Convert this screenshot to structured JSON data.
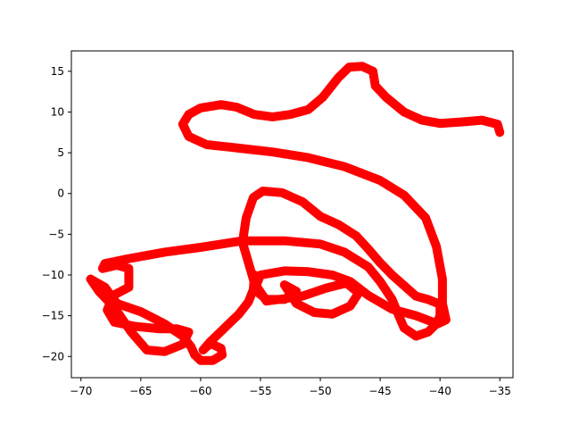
{
  "chart_data": {
    "type": "line",
    "title": "",
    "xlabel": "",
    "ylabel": "",
    "xlim": [
      -70.8,
      -33.9
    ],
    "ylim": [
      -22.6,
      17.5
    ],
    "x_ticks": [
      -70,
      -65,
      -60,
      -55,
      -50,
      -45,
      -40,
      -35
    ],
    "y_ticks": [
      15,
      10,
      5,
      0,
      -5,
      -10,
      -15,
      -20
    ],
    "x_tick_labels": [
      "−70",
      "−65",
      "−60",
      "−55",
      "−50",
      "−45",
      "−40",
      "−35"
    ],
    "y_tick_labels": [
      "15",
      "10",
      "5",
      "0",
      "−5",
      "−10",
      "−15",
      "−20"
    ],
    "grid": false,
    "series": [
      {
        "color": "#ff0000",
        "points": [
          [
            -35.0,
            7.5
          ],
          [
            -35.2,
            8.5
          ],
          [
            -36.5,
            9.0
          ],
          [
            -38.0,
            8.8
          ],
          [
            -40.0,
            8.6
          ],
          [
            -41.5,
            9.0
          ],
          [
            -43.0,
            10.0
          ],
          [
            -44.5,
            11.8
          ],
          [
            -45.4,
            13.2
          ],
          [
            -45.6,
            15.0
          ],
          [
            -46.5,
            15.6
          ],
          [
            -47.6,
            15.5
          ],
          [
            -48.5,
            14.2
          ],
          [
            -49.8,
            11.8
          ],
          [
            -51.0,
            10.3
          ],
          [
            -52.5,
            9.7
          ],
          [
            -54.0,
            9.4
          ],
          [
            -55.5,
            9.7
          ],
          [
            -57.0,
            10.6
          ],
          [
            -58.3,
            10.9
          ],
          [
            -60.0,
            10.5
          ],
          [
            -61.0,
            9.7
          ],
          [
            -61.5,
            8.5
          ],
          [
            -61.0,
            7.0
          ],
          [
            -59.5,
            6.0
          ],
          [
            -57.0,
            5.6
          ],
          [
            -54.0,
            5.1
          ],
          [
            -51.0,
            4.4
          ],
          [
            -48.0,
            3.3
          ],
          [
            -45.0,
            1.6
          ],
          [
            -43.0,
            -0.2
          ],
          [
            -41.2,
            -3.0
          ],
          [
            -40.3,
            -6.5
          ],
          [
            -39.8,
            -10.5
          ],
          [
            -39.8,
            -13.5
          ],
          [
            -39.5,
            -15.5
          ],
          [
            -40.2,
            -16.0
          ],
          [
            -42.0,
            -15.0
          ],
          [
            -44.0,
            -14.2
          ],
          [
            -46.0,
            -12.5
          ],
          [
            -47.5,
            -10.8
          ],
          [
            -49.0,
            -10.0
          ],
          [
            -51.0,
            -9.6
          ],
          [
            -53.0,
            -9.5
          ],
          [
            -55.0,
            -10.0
          ],
          [
            -55.5,
            -11.8
          ],
          [
            -54.5,
            -13.0
          ],
          [
            -53.0,
            -13.0
          ],
          [
            -52.0,
            -12.0
          ],
          [
            -53.0,
            -11.2
          ],
          [
            -52.0,
            -13.5
          ],
          [
            -50.5,
            -14.6
          ],
          [
            -49.0,
            -14.8
          ],
          [
            -47.5,
            -13.8
          ],
          [
            -46.8,
            -12.2
          ],
          [
            -47.8,
            -11.0
          ],
          [
            -49.5,
            -11.6
          ],
          [
            -51.5,
            -12.6
          ],
          [
            -53.5,
            -13.0
          ],
          [
            -54.5,
            -13.2
          ]
        ]
      },
      {
        "color": "#ff0000",
        "points": [
          [
            -54.5,
            -13.2
          ],
          [
            -55.5,
            -11.0
          ],
          [
            -56.0,
            -8.5
          ],
          [
            -56.5,
            -6.0
          ],
          [
            -56.2,
            -3.0
          ],
          [
            -55.6,
            -0.5
          ],
          [
            -54.8,
            0.3
          ],
          [
            -53.2,
            0.1
          ],
          [
            -51.5,
            -1.0
          ],
          [
            -50.0,
            -2.8
          ],
          [
            -48.5,
            -3.8
          ],
          [
            -47.0,
            -5.2
          ],
          [
            -46.0,
            -6.8
          ],
          [
            -45.0,
            -8.5
          ],
          [
            -44.0,
            -10.0
          ],
          [
            -43.0,
            -11.3
          ],
          [
            -42.0,
            -12.6
          ],
          [
            -41.0,
            -13.0
          ],
          [
            -40.0,
            -13.6
          ],
          [
            -40.0,
            -15.0
          ],
          [
            -40.3,
            -16.0
          ],
          [
            -41.0,
            -17.0
          ],
          [
            -42.0,
            -17.5
          ],
          [
            -43.0,
            -16.5
          ],
          [
            -43.5,
            -14.8
          ],
          [
            -44.0,
            -13.0
          ],
          [
            -45.0,
            -10.8
          ],
          [
            -46.0,
            -9.0
          ],
          [
            -48.0,
            -7.2
          ],
          [
            -50.0,
            -6.2
          ],
          [
            -53.0,
            -5.8
          ],
          [
            -56.5,
            -5.8
          ],
          [
            -60.0,
            -6.6
          ],
          [
            -63.0,
            -7.2
          ],
          [
            -66.0,
            -8.0
          ],
          [
            -68.0,
            -8.6
          ],
          [
            -68.2,
            -9.2
          ],
          [
            -67.0,
            -8.8
          ],
          [
            -66.0,
            -9.2
          ],
          [
            -66.0,
            -11.5
          ],
          [
            -67.3,
            -12.5
          ],
          [
            -67.8,
            -14.3
          ],
          [
            -67.2,
            -15.8
          ],
          [
            -65.5,
            -16.3
          ],
          [
            -63.5,
            -16.6
          ],
          [
            -62.0,
            -16.6
          ],
          [
            -61.0,
            -17.0
          ],
          [
            -61.5,
            -18.5
          ],
          [
            -63.0,
            -19.4
          ],
          [
            -64.5,
            -19.2
          ],
          [
            -65.8,
            -17.0
          ],
          [
            -67.2,
            -14.0
          ],
          [
            -68.5,
            -12.0
          ],
          [
            -69.2,
            -10.5
          ],
          [
            -68.0,
            -11.5
          ],
          [
            -67.0,
            -13.5
          ],
          [
            -65.0,
            -14.5
          ],
          [
            -63.0,
            -16.0
          ],
          [
            -61.5,
            -17.5
          ],
          [
            -60.8,
            -18.8
          ]
        ]
      },
      {
        "color": "#ff0000",
        "points": [
          [
            -60.8,
            -18.8
          ],
          [
            -60.5,
            -19.8
          ],
          [
            -60.0,
            -20.5
          ],
          [
            -59.0,
            -20.5
          ],
          [
            -58.2,
            -19.8
          ],
          [
            -58.3,
            -19.0
          ],
          [
            -59.2,
            -18.4
          ],
          [
            -59.8,
            -19.2
          ],
          [
            -59.2,
            -18.2
          ],
          [
            -58.0,
            -16.5
          ],
          [
            -56.8,
            -14.8
          ],
          [
            -56.0,
            -13.3
          ],
          [
            -55.6,
            -11.8
          ],
          [
            -55.5,
            -10.0
          ]
        ]
      }
    ]
  }
}
